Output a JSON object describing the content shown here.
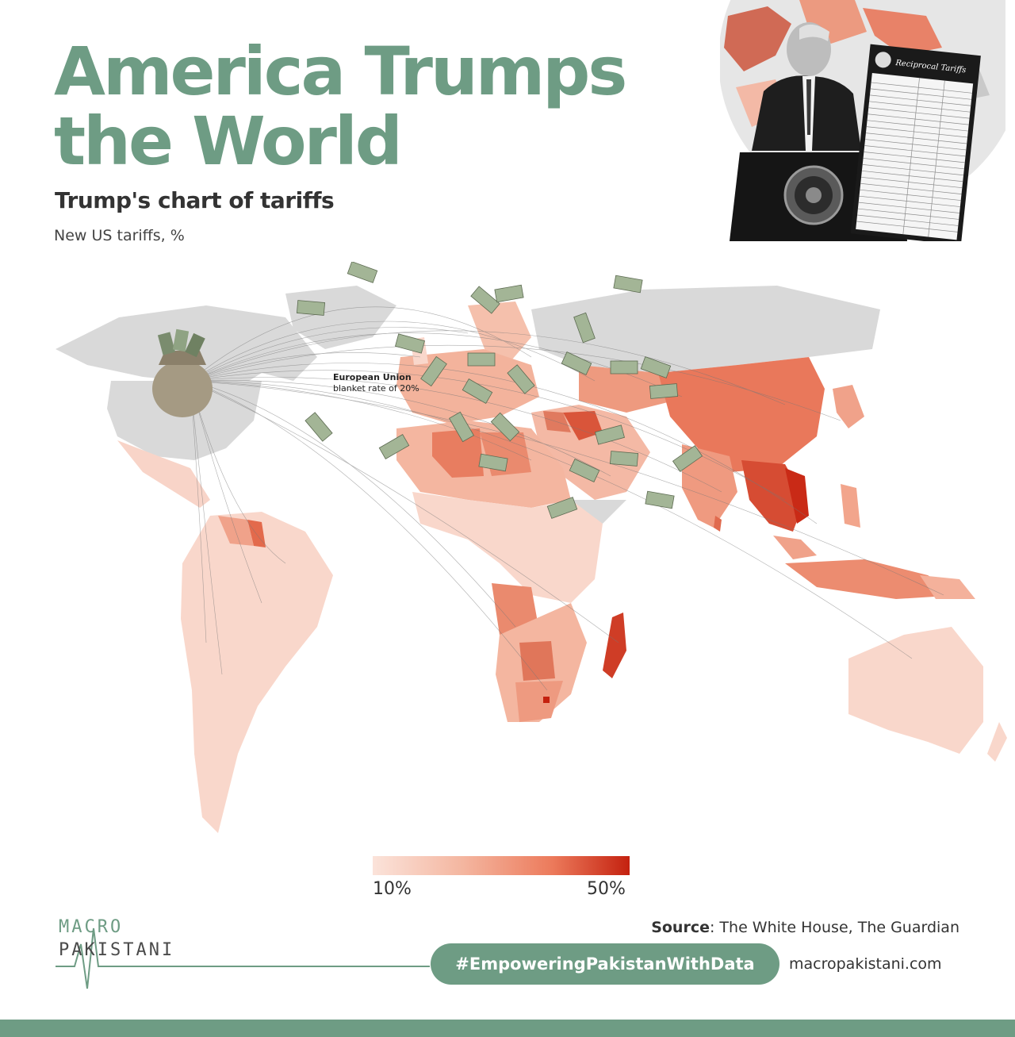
{
  "header": {
    "title_line1": "America Trumps",
    "title_line2": "the World",
    "subtitle": "Trump's chart of tariffs",
    "unit": "New US tariffs, %"
  },
  "map": {
    "annotation_title": "European Union",
    "annotation_text": "blanket rate of 20%"
  },
  "legend": {
    "min_label": "10%",
    "max_label": "50%",
    "min_color": "#fbe3da",
    "max_color": "#c4210f"
  },
  "photo": {
    "board_title": "Reciprocal Tariffs"
  },
  "footer": {
    "logo_line1": "MACRO",
    "logo_line2": "PAKISTANI",
    "source_label": "Source",
    "source_text": ": The White House, The Guardian",
    "hashtag": "#EmpoweringPakistanWithData",
    "website": "macropakistani.com"
  },
  "colors": {
    "brand": "#6e9c84",
    "text": "#333333",
    "no_data": "#d9d9d9"
  }
}
